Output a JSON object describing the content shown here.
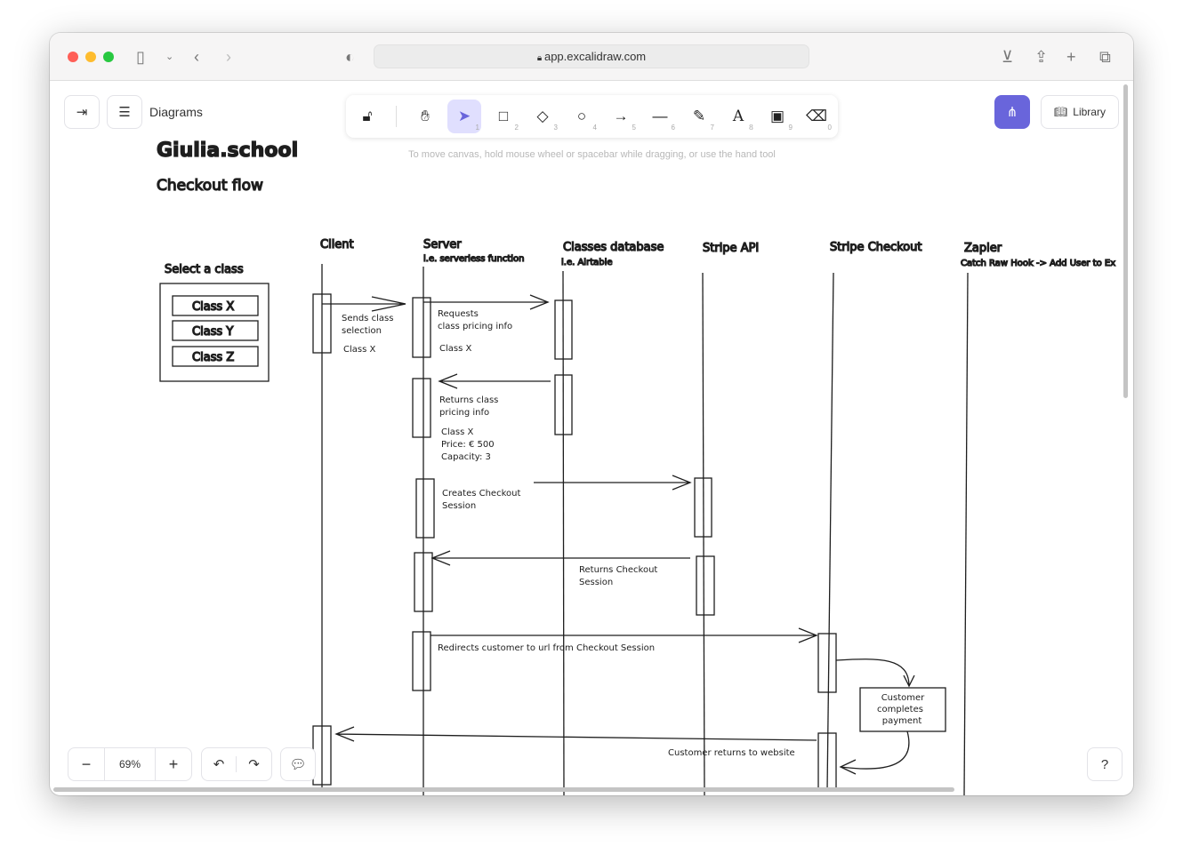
{
  "browser": {
    "url": "app.excalidraw.com",
    "colors": {
      "close": "#ff5f57",
      "minimize": "#febc2e",
      "maximize": "#28c840"
    }
  },
  "app": {
    "file_name": "Diagrams",
    "library_label": "Library",
    "zoom": "69%",
    "hint": "To move canvas, hold mouse wheel or spacebar while dragging, or use the hand tool",
    "accent": "#6965db",
    "tools": [
      {
        "icon": "hand-icon",
        "key": ""
      },
      {
        "icon": "selection-icon",
        "key": "1"
      },
      {
        "icon": "rectangle-icon",
        "key": "2"
      },
      {
        "icon": "diamond-icon",
        "key": "3"
      },
      {
        "icon": "ellipse-icon",
        "key": "4"
      },
      {
        "icon": "arrow-icon",
        "key": "5"
      },
      {
        "icon": "line-icon",
        "key": "6"
      },
      {
        "icon": "pencil-icon",
        "key": "7"
      },
      {
        "icon": "text-icon",
        "key": "8"
      },
      {
        "icon": "image-icon",
        "key": "9"
      },
      {
        "icon": "eraser-icon",
        "key": "0"
      }
    ]
  },
  "drawing": {
    "title": "Giulia.school",
    "subtitle": "Checkout flow",
    "select_label": "Select a class",
    "classes": [
      "Class X",
      "Class Y",
      "Class Z"
    ],
    "lanes": [
      {
        "name": "Client",
        "sub": ""
      },
      {
        "name": "Server",
        "sub": "i.e. serverless function"
      },
      {
        "name": "Classes database",
        "sub": "i.e. Airtable"
      },
      {
        "name": "Stripe API",
        "sub": ""
      },
      {
        "name": "Stripe Checkout",
        "sub": ""
      },
      {
        "name": "Zapier",
        "sub": "Catch Raw Hook -> Add User to Ex"
      }
    ],
    "messages": [
      "Sends class",
      "selection",
      "Class X",
      "Requests",
      "class pricing info",
      "Class X",
      "Returns class",
      "pricing info",
      "Class X",
      "Price: € 500",
      "Capacity: 3",
      "Creates Checkout",
      "Session",
      "Returns Checkout",
      "Session",
      "Redirects customer to url from Checkout Session",
      "Customer",
      "completes",
      "payment",
      "Customer returns to website"
    ]
  }
}
